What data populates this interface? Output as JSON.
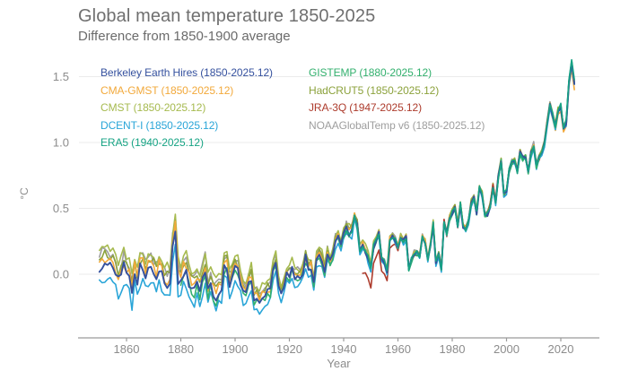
{
  "title": "Global mean temperature 1850-2025",
  "subtitle": "Difference from 1850-1900 average",
  "colors": {
    "background": "#ffffff",
    "title_text": "#6f6f6f",
    "axis_text": "#8c8c8c",
    "axis_line": "#9b9b9b",
    "grid_line": "#ebebeb"
  },
  "chart_data": {
    "type": "line",
    "title": "Global mean temperature 1850-2025",
    "subtitle": "Difference from 1850-1900 average",
    "xlabel": "Year",
    "ylabel": "°C",
    "x_ticks": [
      1860,
      1880,
      1900,
      1920,
      1940,
      1960,
      1980,
      2000,
      2020
    ],
    "y_ticks": [
      "0.0",
      "0.5",
      "1.0",
      "1.5"
    ],
    "xlim": [
      1848,
      2028
    ],
    "ylim": [
      -0.45,
      1.65
    ],
    "grid": "horizontal",
    "legend_position": "top-left, two columns, colored text",
    "years": {
      "start": 1850,
      "end": 2025
    },
    "anomaly_mean_by_year": [
      0.03,
      0.08,
      0.07,
      0.06,
      0.05,
      0.04,
      0.01,
      -0.06,
      -0.02,
      0.06,
      -0.01,
      -0.04,
      -0.15,
      0.02,
      -0.08,
      0.04,
      0.04,
      -0.01,
      0.04,
      0.03,
      0.02,
      -0.02,
      0.04,
      0.0,
      -0.06,
      -0.08,
      -0.07,
      0.21,
      0.32,
      -0.03,
      -0.04,
      0.02,
      0.01,
      -0.06,
      -0.12,
      -0.11,
      -0.08,
      -0.12,
      -0.04,
      0.05,
      -0.12,
      -0.07,
      -0.15,
      -0.17,
      -0.13,
      -0.09,
      0.04,
      0.05,
      -0.08,
      -0.01,
      0.06,
      0.02,
      -0.06,
      -0.13,
      -0.16,
      -0.07,
      -0.03,
      -0.19,
      -0.18,
      -0.2,
      -0.18,
      -0.19,
      -0.14,
      -0.13,
      0.03,
      0.09,
      -0.09,
      -0.15,
      -0.08,
      -0.01,
      -0.02,
      0.03,
      -0.04,
      -0.02,
      -0.03,
      0.02,
      0.12,
      0.04,
      0.06,
      -0.07,
      0.11,
      0.14,
      0.11,
      0.03,
      0.15,
      0.09,
      0.13,
      0.25,
      0.27,
      0.22,
      0.3,
      0.35,
      0.32,
      0.33,
      0.45,
      0.38,
      0.17,
      0.21,
      0.18,
      0.12,
      0.05,
      0.21,
      0.26,
      0.31,
      0.12,
      0.09,
      0.02,
      0.26,
      0.29,
      0.26,
      0.21,
      0.28,
      0.25,
      0.28,
      0.04,
      0.11,
      0.16,
      0.16,
      0.13,
      0.28,
      0.24,
      0.11,
      0.22,
      0.38,
      0.09,
      0.16,
      0.04,
      0.4,
      0.3,
      0.42,
      0.47,
      0.51,
      0.37,
      0.53,
      0.36,
      0.34,
      0.4,
      0.54,
      0.58,
      0.47,
      0.66,
      0.61,
      0.44,
      0.46,
      0.52,
      0.67,
      0.55,
      0.74,
      0.86,
      0.61,
      0.63,
      0.79,
      0.85,
      0.85,
      0.78,
      0.92,
      0.88,
      0.89,
      0.77,
      0.91,
      0.98,
      0.82,
      0.88,
      0.92,
      0.99,
      1.15,
      1.29,
      1.21,
      1.12,
      1.24,
      1.27,
      1.11,
      1.15,
      1.45,
      1.6,
      1.45
    ],
    "series": [
      {
        "name": "Berkeley Earth Hires",
        "label": "Berkeley Earth Hires (1850-2025.12)",
        "color": "#35519E",
        "start_year": 1850,
        "early_offset": 0.0,
        "late_offset": 0.0
      },
      {
        "name": "CMA-GMST",
        "label": "CMA-GMST (1850-2025.12)",
        "color": "#F2A93B",
        "start_year": 1850,
        "early_offset": 0.04,
        "late_offset": -0.05
      },
      {
        "name": "CMST",
        "label": "CMST (1850-2025.12)",
        "color": "#A6BA4F",
        "start_year": 1850,
        "early_offset": 0.13,
        "late_offset": 0.0
      },
      {
        "name": "DCENT-I",
        "label": "DCENT-I (1850-2025.12)",
        "color": "#29A5D8",
        "start_year": 1850,
        "early_offset": -0.11,
        "late_offset": 0.0
      },
      {
        "name": "ERA5",
        "label": "ERA5 (1940-2025.12)",
        "color": "#17A384",
        "start_year": 1940,
        "early_offset": 0.0,
        "late_offset": 0.02
      },
      {
        "name": "GISTEMP",
        "label": "GISTEMP (1880-2025.12)",
        "color": "#33B06E",
        "start_year": 1880,
        "early_offset": -0.03,
        "late_offset": 0.0
      },
      {
        "name": "HadCRUT5",
        "label": "HadCRUT5 (1850-2025.12)",
        "color": "#8CA23C",
        "start_year": 1850,
        "early_offset": 0.07,
        "late_offset": 0.0
      },
      {
        "name": "JRA-3Q",
        "label": "JRA-3Q (1947-2025.12)",
        "color": "#AD3B2C",
        "start_year": 1947,
        "early_offset": -0.18,
        "late_offset": 0.0,
        "offset_decays_from_start": true
      },
      {
        "name": "NOAAGlobalTemp v6",
        "label": "NOAAGlobalTemp v6 (1850-2025.12)",
        "color": "#9E9E9E",
        "start_year": 1850,
        "early_offset": 0.09,
        "late_offset": 0.0
      }
    ],
    "legend_columns": [
      [
        0,
        1,
        2,
        3,
        4
      ],
      [
        5,
        6,
        7,
        8
      ]
    ],
    "draw_order": [
      8,
      2,
      6,
      1,
      7,
      3,
      5,
      0,
      4
    ]
  }
}
